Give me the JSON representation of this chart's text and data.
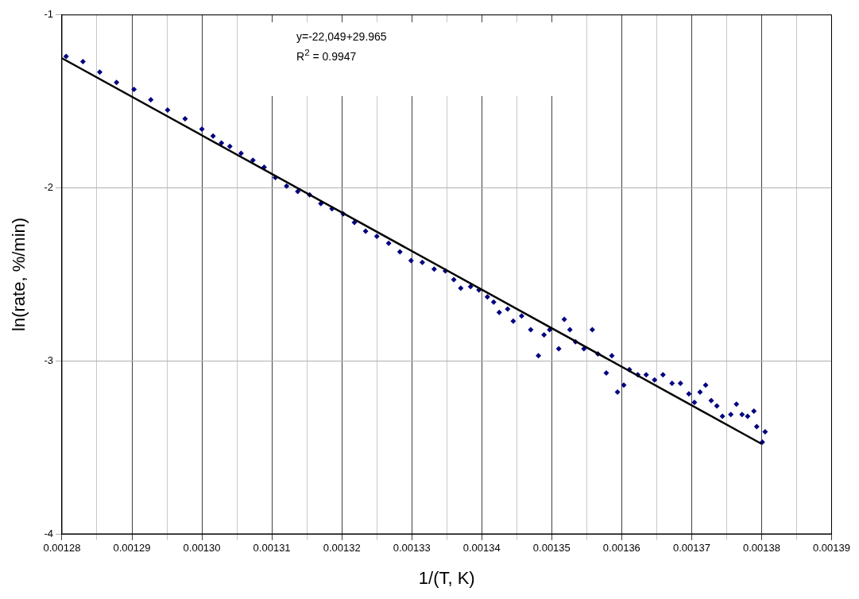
{
  "chart_data": {
    "type": "scatter",
    "xlabel": "1/(T, K)",
    "ylabel": "ln(rate, %/min)",
    "annotations": [
      "y=-22,049+29.965",
      "R$^{2}$ = 0.9947"
    ],
    "xlim": [
      0.00128,
      0.00139
    ],
    "xticks": [
      {
        "value": 0.00128,
        "label": "0.00128"
      },
      {
        "value": 0.001285,
        "label": null
      },
      {
        "value": 0.00129,
        "label": "0.00129"
      },
      {
        "value": 0.001295,
        "label": null
      },
      {
        "value": 0.0013,
        "label": "0.00130"
      },
      {
        "value": 0.001305,
        "label": null
      },
      {
        "value": 0.00131,
        "label": "0.00131"
      },
      {
        "value": 0.001315,
        "label": null
      },
      {
        "value": 0.00132,
        "label": "0.00132"
      },
      {
        "value": 0.001325,
        "label": null
      },
      {
        "value": 0.00133,
        "label": "0.00133"
      },
      {
        "value": 0.001335,
        "label": null
      },
      {
        "value": 0.00134,
        "label": "0.00134"
      },
      {
        "value": 0.001345,
        "label": null
      },
      {
        "value": 0.00135,
        "label": "0.00135"
      },
      {
        "value": 0.001355,
        "label": null
      },
      {
        "value": 0.00136,
        "label": "0.00136"
      },
      {
        "value": 0.001365,
        "label": null
      },
      {
        "value": 0.00137,
        "label": "0.00137"
      },
      {
        "value": 0.001375,
        "label": null
      },
      {
        "value": 0.00138,
        "label": "0.00138"
      },
      {
        "value": 0.001385,
        "label": null
      },
      {
        "value": 0.00139,
        "label": "0.00139"
      }
    ],
    "ylim": [
      -4,
      -1
    ],
    "yticks": [
      -4,
      -3,
      -2,
      -1
    ],
    "grid": true,
    "legend": false,
    "series": [
      {
        "type": "scatter",
        "color": "#000080",
        "marker": "diamond",
        "x": [
          0.0012806,
          0.001283,
          0.0012854,
          0.0012878,
          0.0012903,
          0.0012927,
          0.0012951,
          0.0012976,
          0.0013,
          0.0013016,
          0.0013028,
          0.001304,
          0.0013056,
          0.0013073,
          0.0013089,
          0.0013105,
          0.0013121,
          0.0013137,
          0.0013154,
          0.001317,
          0.0013186,
          0.0013202,
          0.0013218,
          0.0013234,
          0.001325,
          0.0013267,
          0.0013283,
          0.0013299,
          0.0013315,
          0.0013332,
          0.0013348,
          0.001336,
          0.001337,
          0.0013384,
          0.0013396,
          0.0013408,
          0.0013417,
          0.0013425,
          0.0013437,
          0.0013445,
          0.0013457,
          0.001347,
          0.0013481,
          0.0013489,
          0.0013497,
          0.001351,
          0.0013518,
          0.0013526,
          0.0013534,
          0.0013546,
          0.0013558,
          0.0013566,
          0.0013578,
          0.0013586,
          0.0013594,
          0.0013603,
          0.0013611,
          0.0013623,
          0.0013635,
          0.0013647,
          0.0013659,
          0.0013672,
          0.0013684,
          0.0013696,
          0.0013704,
          0.0013712,
          0.001372,
          0.0013728,
          0.0013736,
          0.0013744,
          0.0013756,
          0.0013764,
          0.0013772,
          0.001378,
          0.0013789,
          0.0013793,
          0.0013801,
          0.0013805
        ],
        "values": [
          -1.24,
          -1.27,
          -1.33,
          -1.39,
          -1.43,
          -1.49,
          -1.55,
          -1.6,
          -1.66,
          -1.7,
          -1.74,
          -1.76,
          -1.8,
          -1.84,
          -1.88,
          -1.94,
          -1.99,
          -2.02,
          -2.04,
          -2.09,
          -2.12,
          -2.15,
          -2.2,
          -2.25,
          -2.28,
          -2.32,
          -2.37,
          -2.42,
          -2.43,
          -2.47,
          -2.48,
          -2.53,
          -2.58,
          -2.57,
          -2.59,
          -2.63,
          -2.66,
          -2.72,
          -2.7,
          -2.77,
          -2.74,
          -2.82,
          -2.97,
          -2.85,
          -2.82,
          -2.93,
          -2.76,
          -2.82,
          -2.89,
          -2.93,
          -2.82,
          -2.96,
          -3.07,
          -2.97,
          -3.18,
          -3.14,
          -3.05,
          -3.08,
          -3.08,
          -3.11,
          -3.08,
          -3.13,
          -3.13,
          -3.19,
          -3.24,
          -3.18,
          -3.14,
          -3.23,
          -3.26,
          -3.32,
          -3.31,
          -3.25,
          -3.31,
          -3.32,
          -3.29,
          -3.38,
          -3.47,
          -3.41
        ]
      },
      {
        "type": "line",
        "color": "#000000",
        "line_style": "solid",
        "marker": "none",
        "x": [
          0.00128,
          0.00138
        ],
        "values": [
          -1.25,
          -3.48
        ]
      }
    ]
  }
}
